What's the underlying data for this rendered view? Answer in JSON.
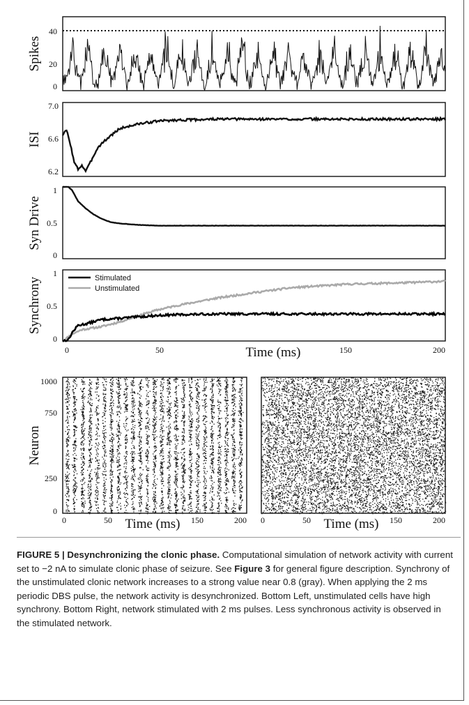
{
  "figure": {
    "charts": [
      {
        "key": "spikes",
        "ylabel": "Spikes",
        "yticks": [
          "40",
          "20",
          "0"
        ]
      },
      {
        "key": "isi",
        "ylabel": "ISI",
        "yticks": [
          "7.0",
          "6.6",
          "6.2"
        ]
      },
      {
        "key": "syn",
        "ylabel": "Syn Drive",
        "yticks": [
          "1",
          "0.5",
          "0"
        ]
      },
      {
        "key": "sync",
        "ylabel": "Synchrony",
        "yticks": [
          "1",
          "0.5",
          "0"
        ],
        "xticks": [
          "0",
          "50",
          "150",
          "200"
        ],
        "xlabel": "Time (ms)",
        "legend": [
          "Stimulated",
          "Unstimulated"
        ]
      }
    ],
    "raster_left": {
      "ylabel": "Neuron",
      "yticks": [
        "1000",
        "750",
        "250",
        "0"
      ],
      "xticks": [
        "0",
        "50",
        "150",
        "200"
      ],
      "xlabel": "Time (ms)"
    },
    "raster_right": {
      "xticks": [
        "0",
        "50",
        "150",
        "200"
      ],
      "xlabel": "Time (ms)"
    }
  },
  "caption": {
    "label": "FIGURE 5 | Desynchronizing the clonic phase.",
    "text_1": " Computational simulation of network activity with current set to −2 nA to simulate clonic phase of seizure. See ",
    "ref": "Figure 3",
    "text_2": " for general figure description. Synchrony of the unstimulated clonic network increases to a strong value near 0.8 (gray). When applying the 2 ms periodic DBS pulse, the network activity is desynchronized. Bottom Left, unstimulated cells have high synchrony. Bottom Right, network stimulated with 2 ms pulses. Less synchronous activity is observed in the stimulated network."
  },
  "chart_data": [
    {
      "type": "line",
      "ylabel": "Spikes",
      "xlim": [
        0,
        200
      ],
      "ylim": [
        0,
        45
      ],
      "threshold": 40,
      "threshold_style": "dotted",
      "peak_times": [
        5,
        13,
        22,
        30,
        38,
        46,
        54,
        62,
        70,
        78,
        86,
        94,
        102,
        110,
        118,
        126,
        134,
        142,
        150,
        158,
        166,
        174,
        182,
        190,
        198
      ],
      "baseline_range": [
        0,
        10
      ],
      "peak_range": [
        20,
        45
      ]
    },
    {
      "type": "line",
      "ylabel": "ISI",
      "xlim": [
        0,
        200
      ],
      "ylim": [
        6.2,
        7.0
      ],
      "series": [
        {
          "x": [
            0,
            2,
            4,
            6,
            8,
            10,
            12,
            14,
            16,
            18,
            20,
            25,
            30,
            40,
            50,
            60,
            80,
            100,
            150,
            200
          ],
          "values": [
            6.65,
            6.7,
            6.55,
            6.35,
            6.28,
            6.32,
            6.26,
            6.33,
            6.42,
            6.5,
            6.55,
            6.64,
            6.72,
            6.77,
            6.8,
            6.81,
            6.82,
            6.82,
            6.82,
            6.82
          ]
        }
      ]
    },
    {
      "type": "line",
      "ylabel": "Syn Drive",
      "xlim": [
        0,
        200
      ],
      "ylim": [
        0,
        1
      ],
      "series": [
        {
          "x": [
            0,
            3,
            5,
            8,
            12,
            16,
            20,
            25,
            30,
            40,
            50,
            60,
            100,
            150,
            200
          ],
          "values": [
            1.0,
            1.0,
            0.95,
            0.8,
            0.7,
            0.62,
            0.56,
            0.51,
            0.49,
            0.47,
            0.46,
            0.46,
            0.46,
            0.46,
            0.46
          ]
        }
      ]
    },
    {
      "type": "line",
      "ylabel": "Synchrony",
      "xlabel": "Time (ms)",
      "xlim": [
        0,
        200
      ],
      "ylim": [
        0,
        1
      ],
      "legend_position": "top-left",
      "series": [
        {
          "name": "Stimulated",
          "color": "#000000",
          "x": [
            0,
            3,
            5,
            8,
            12,
            20,
            30,
            40,
            50,
            60,
            80,
            100,
            150,
            200
          ],
          "values": [
            0.0,
            0.02,
            0.12,
            0.22,
            0.24,
            0.3,
            0.32,
            0.34,
            0.36,
            0.37,
            0.38,
            0.38,
            0.38,
            0.38
          ]
        },
        {
          "name": "Unstimulated",
          "color": "#aaaaaa",
          "x": [
            0,
            5,
            10,
            20,
            30,
            40,
            50,
            60,
            80,
            100,
            120,
            150,
            180,
            200
          ],
          "values": [
            0.0,
            0.1,
            0.16,
            0.2,
            0.27,
            0.36,
            0.44,
            0.5,
            0.6,
            0.68,
            0.75,
            0.8,
            0.82,
            0.84
          ]
        }
      ]
    },
    {
      "type": "scatter",
      "ylabel": "Neuron",
      "xlabel": "Time (ms)",
      "xlim": [
        0,
        205
      ],
      "ylim": [
        0,
        1000
      ],
      "stripe_times": [
        5,
        13,
        22,
        30,
        38,
        46,
        54,
        62,
        70,
        78,
        86,
        94,
        102,
        110,
        118,
        126,
        134,
        142,
        150,
        158,
        166,
        174,
        182,
        190,
        198
      ]
    },
    {
      "type": "scatter",
      "xlabel": "Time (ms)",
      "xlim": [
        0,
        205
      ],
      "ylim": [
        0,
        1000
      ],
      "pattern": "diffuse with faint stripes"
    }
  ]
}
